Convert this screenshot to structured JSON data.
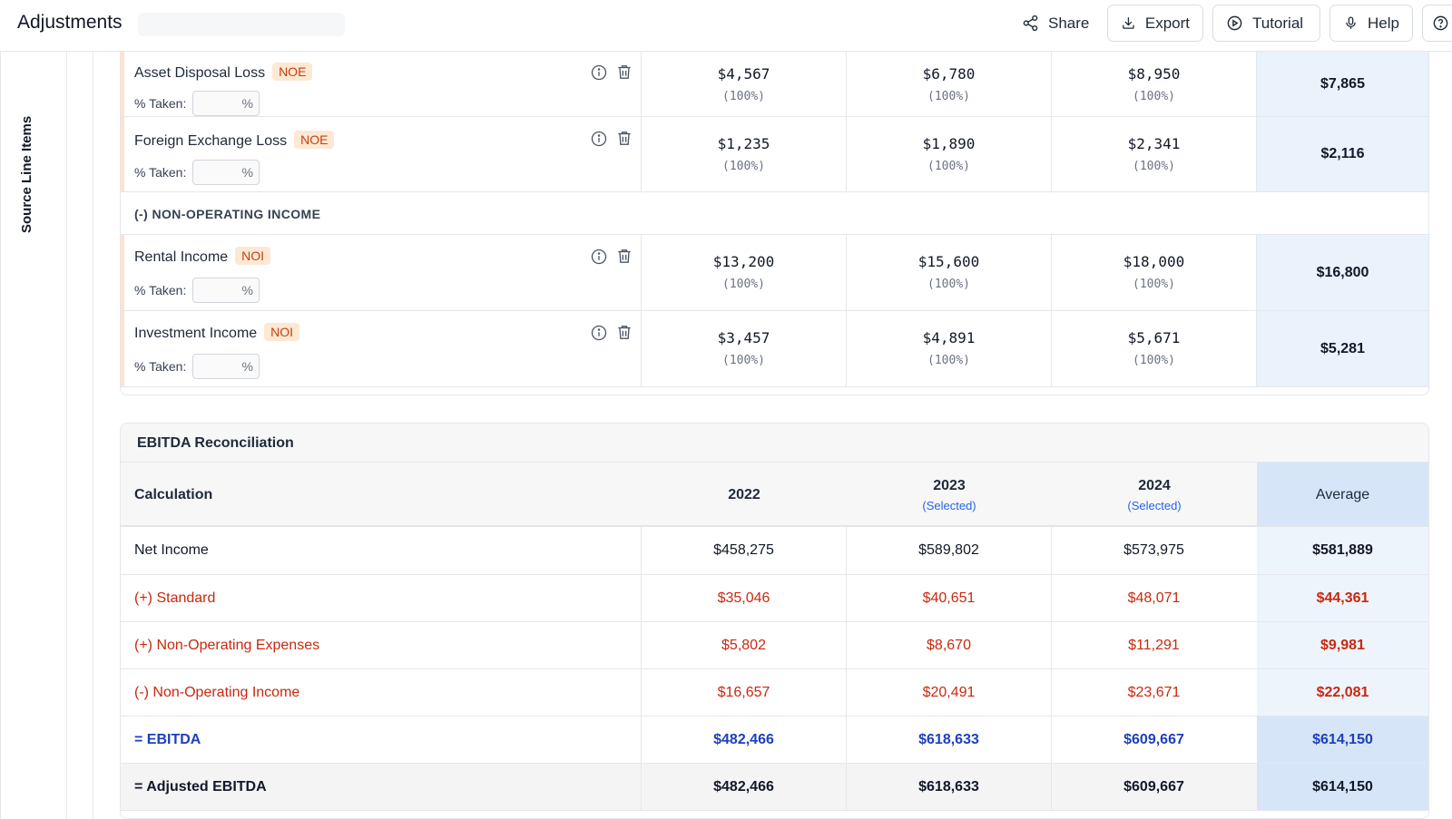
{
  "header": {
    "title": "Adjustments",
    "buttons": {
      "share": "Share",
      "export": "Export",
      "tutorial": "Tutorial",
      "help": "Help"
    }
  },
  "rail": {
    "label": "Source Line Items"
  },
  "adjustments": {
    "pct_label": "% Taken:",
    "pct_suffix": "%",
    "items": [
      {
        "name": "Asset Disposal Loss",
        "tag": "NOE",
        "values": [
          "$4,567",
          "$6,780",
          "$8,950"
        ],
        "pcts": [
          "(100%)",
          "(100%)",
          "(100%)"
        ],
        "average": "$7,865"
      },
      {
        "name": "Foreign Exchange Loss",
        "tag": "NOE",
        "values": [
          "$1,235",
          "$1,890",
          "$2,341"
        ],
        "pcts": [
          "(100%)",
          "(100%)",
          "(100%)"
        ],
        "average": "$2,116"
      },
      {
        "name": "Rental Income",
        "tag": "NOI",
        "values": [
          "$13,200",
          "$15,600",
          "$18,000"
        ],
        "pcts": [
          "(100%)",
          "(100%)",
          "(100%)"
        ],
        "average": "$16,800"
      },
      {
        "name": "Investment Income",
        "tag": "NOI",
        "values": [
          "$3,457",
          "$4,891",
          "$5,671"
        ],
        "pcts": [
          "(100%)",
          "(100%)",
          "(100%)"
        ],
        "average": "$5,281"
      }
    ],
    "section_noi": "(-) NON-OPERATING INCOME"
  },
  "recon": {
    "title": "EBITDA Reconciliation",
    "columns": {
      "calc": "Calculation",
      "y1": "2022",
      "y2": "2023",
      "y2_note": "(Selected)",
      "y3": "2024",
      "y3_note": "(Selected)",
      "avg": "Average"
    },
    "rows": [
      {
        "label": "Net Income",
        "values": [
          "$458,275",
          "$589,802",
          "$573,975"
        ],
        "average": "$581,889"
      },
      {
        "label": "(+) Standard",
        "values": [
          "$35,046",
          "$40,651",
          "$48,071"
        ],
        "average": "$44,361"
      },
      {
        "label": "(+) Non-Operating Expenses",
        "values": [
          "$5,802",
          "$8,670",
          "$11,291"
        ],
        "average": "$9,981"
      },
      {
        "label": "(-) Non-Operating Income",
        "values": [
          "$16,657",
          "$20,491",
          "$23,671"
        ],
        "average": "$22,081"
      },
      {
        "label": "= EBITDA",
        "values": [
          "$482,466",
          "$618,633",
          "$609,667"
        ],
        "average": "$614,150"
      },
      {
        "label": "= Adjusted EBITDA",
        "values": [
          "$482,466",
          "$618,633",
          "$609,667"
        ],
        "average": "$614,150"
      }
    ]
  },
  "colors": {
    "accent_orange": "#c2410c",
    "red": "#c8290f",
    "blue": "#1d3fbf",
    "select_blue": "#2563eb"
  }
}
